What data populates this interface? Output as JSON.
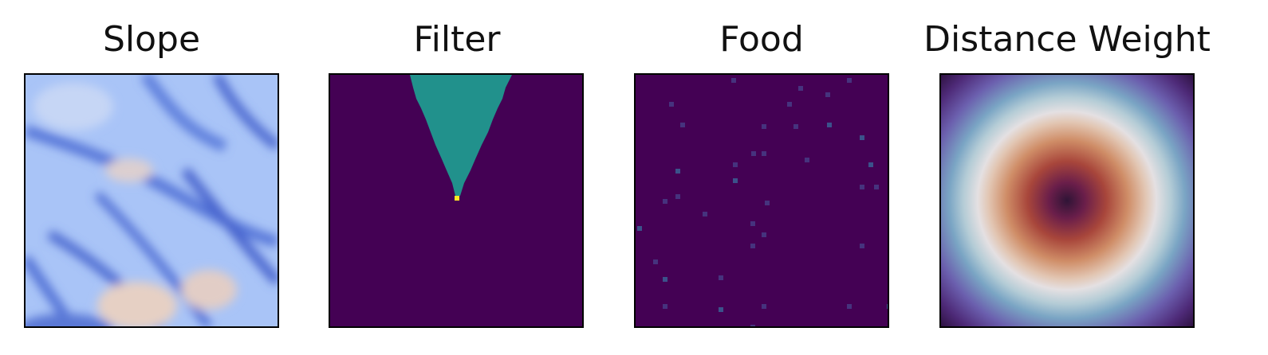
{
  "panels": [
    {
      "title": "Slope"
    },
    {
      "title": "Filter"
    },
    {
      "title": "Food"
    },
    {
      "title": "Distance Weight"
    }
  ]
}
